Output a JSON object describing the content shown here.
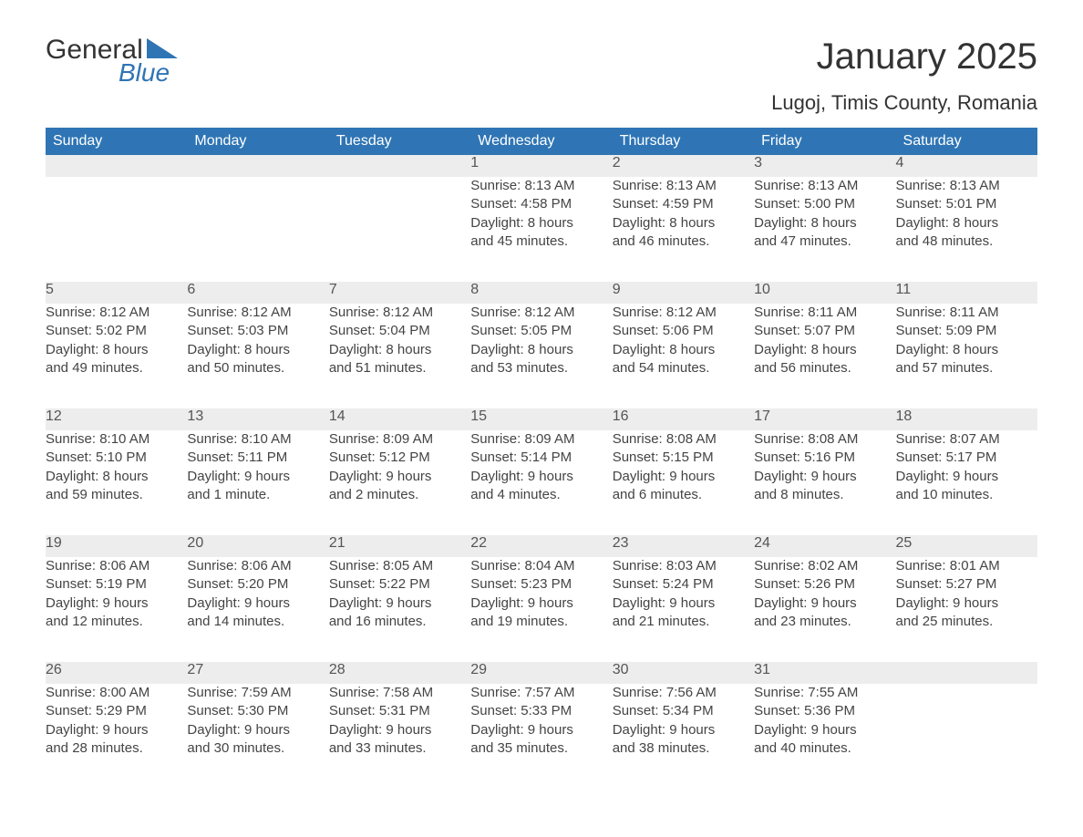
{
  "logo": {
    "word1": "General",
    "word2": "Blue",
    "brand_color": "#2f75b5"
  },
  "header": {
    "title": "January 2025",
    "location": "Lugoj, Timis County, Romania"
  },
  "dayHeaders": [
    "Sunday",
    "Monday",
    "Tuesday",
    "Wednesday",
    "Thursday",
    "Friday",
    "Saturday"
  ],
  "colors": {
    "header_bg": "#2f75b5",
    "header_text": "#ffffff",
    "daynum_bg": "#ededed",
    "daynum_text": "#555555",
    "body_text": "#444444",
    "week_sep": "#2f75b5",
    "page_bg": "#ffffff"
  },
  "weeks": [
    [
      {
        "empty": true
      },
      {
        "empty": true
      },
      {
        "empty": true
      },
      {
        "day": "1",
        "sunrise": "Sunrise: 8:13 AM",
        "sunset": "Sunset: 4:58 PM",
        "d1": "Daylight: 8 hours",
        "d2": "and 45 minutes."
      },
      {
        "day": "2",
        "sunrise": "Sunrise: 8:13 AM",
        "sunset": "Sunset: 4:59 PM",
        "d1": "Daylight: 8 hours",
        "d2": "and 46 minutes."
      },
      {
        "day": "3",
        "sunrise": "Sunrise: 8:13 AM",
        "sunset": "Sunset: 5:00 PM",
        "d1": "Daylight: 8 hours",
        "d2": "and 47 minutes."
      },
      {
        "day": "4",
        "sunrise": "Sunrise: 8:13 AM",
        "sunset": "Sunset: 5:01 PM",
        "d1": "Daylight: 8 hours",
        "d2": "and 48 minutes."
      }
    ],
    [
      {
        "day": "5",
        "sunrise": "Sunrise: 8:12 AM",
        "sunset": "Sunset: 5:02 PM",
        "d1": "Daylight: 8 hours",
        "d2": "and 49 minutes."
      },
      {
        "day": "6",
        "sunrise": "Sunrise: 8:12 AM",
        "sunset": "Sunset: 5:03 PM",
        "d1": "Daylight: 8 hours",
        "d2": "and 50 minutes."
      },
      {
        "day": "7",
        "sunrise": "Sunrise: 8:12 AM",
        "sunset": "Sunset: 5:04 PM",
        "d1": "Daylight: 8 hours",
        "d2": "and 51 minutes."
      },
      {
        "day": "8",
        "sunrise": "Sunrise: 8:12 AM",
        "sunset": "Sunset: 5:05 PM",
        "d1": "Daylight: 8 hours",
        "d2": "and 53 minutes."
      },
      {
        "day": "9",
        "sunrise": "Sunrise: 8:12 AM",
        "sunset": "Sunset: 5:06 PM",
        "d1": "Daylight: 8 hours",
        "d2": "and 54 minutes."
      },
      {
        "day": "10",
        "sunrise": "Sunrise: 8:11 AM",
        "sunset": "Sunset: 5:07 PM",
        "d1": "Daylight: 8 hours",
        "d2": "and 56 minutes."
      },
      {
        "day": "11",
        "sunrise": "Sunrise: 8:11 AM",
        "sunset": "Sunset: 5:09 PM",
        "d1": "Daylight: 8 hours",
        "d2": "and 57 minutes."
      }
    ],
    [
      {
        "day": "12",
        "sunrise": "Sunrise: 8:10 AM",
        "sunset": "Sunset: 5:10 PM",
        "d1": "Daylight: 8 hours",
        "d2": "and 59 minutes."
      },
      {
        "day": "13",
        "sunrise": "Sunrise: 8:10 AM",
        "sunset": "Sunset: 5:11 PM",
        "d1": "Daylight: 9 hours",
        "d2": "and 1 minute."
      },
      {
        "day": "14",
        "sunrise": "Sunrise: 8:09 AM",
        "sunset": "Sunset: 5:12 PM",
        "d1": "Daylight: 9 hours",
        "d2": "and 2 minutes."
      },
      {
        "day": "15",
        "sunrise": "Sunrise: 8:09 AM",
        "sunset": "Sunset: 5:14 PM",
        "d1": "Daylight: 9 hours",
        "d2": "and 4 minutes."
      },
      {
        "day": "16",
        "sunrise": "Sunrise: 8:08 AM",
        "sunset": "Sunset: 5:15 PM",
        "d1": "Daylight: 9 hours",
        "d2": "and 6 minutes."
      },
      {
        "day": "17",
        "sunrise": "Sunrise: 8:08 AM",
        "sunset": "Sunset: 5:16 PM",
        "d1": "Daylight: 9 hours",
        "d2": "and 8 minutes."
      },
      {
        "day": "18",
        "sunrise": "Sunrise: 8:07 AM",
        "sunset": "Sunset: 5:17 PM",
        "d1": "Daylight: 9 hours",
        "d2": "and 10 minutes."
      }
    ],
    [
      {
        "day": "19",
        "sunrise": "Sunrise: 8:06 AM",
        "sunset": "Sunset: 5:19 PM",
        "d1": "Daylight: 9 hours",
        "d2": "and 12 minutes."
      },
      {
        "day": "20",
        "sunrise": "Sunrise: 8:06 AM",
        "sunset": "Sunset: 5:20 PM",
        "d1": "Daylight: 9 hours",
        "d2": "and 14 minutes."
      },
      {
        "day": "21",
        "sunrise": "Sunrise: 8:05 AM",
        "sunset": "Sunset: 5:22 PM",
        "d1": "Daylight: 9 hours",
        "d2": "and 16 minutes."
      },
      {
        "day": "22",
        "sunrise": "Sunrise: 8:04 AM",
        "sunset": "Sunset: 5:23 PM",
        "d1": "Daylight: 9 hours",
        "d2": "and 19 minutes."
      },
      {
        "day": "23",
        "sunrise": "Sunrise: 8:03 AM",
        "sunset": "Sunset: 5:24 PM",
        "d1": "Daylight: 9 hours",
        "d2": "and 21 minutes."
      },
      {
        "day": "24",
        "sunrise": "Sunrise: 8:02 AM",
        "sunset": "Sunset: 5:26 PM",
        "d1": "Daylight: 9 hours",
        "d2": "and 23 minutes."
      },
      {
        "day": "25",
        "sunrise": "Sunrise: 8:01 AM",
        "sunset": "Sunset: 5:27 PM",
        "d1": "Daylight: 9 hours",
        "d2": "and 25 minutes."
      }
    ],
    [
      {
        "day": "26",
        "sunrise": "Sunrise: 8:00 AM",
        "sunset": "Sunset: 5:29 PM",
        "d1": "Daylight: 9 hours",
        "d2": "and 28 minutes."
      },
      {
        "day": "27",
        "sunrise": "Sunrise: 7:59 AM",
        "sunset": "Sunset: 5:30 PM",
        "d1": "Daylight: 9 hours",
        "d2": "and 30 minutes."
      },
      {
        "day": "28",
        "sunrise": "Sunrise: 7:58 AM",
        "sunset": "Sunset: 5:31 PM",
        "d1": "Daylight: 9 hours",
        "d2": "and 33 minutes."
      },
      {
        "day": "29",
        "sunrise": "Sunrise: 7:57 AM",
        "sunset": "Sunset: 5:33 PM",
        "d1": "Daylight: 9 hours",
        "d2": "and 35 minutes."
      },
      {
        "day": "30",
        "sunrise": "Sunrise: 7:56 AM",
        "sunset": "Sunset: 5:34 PM",
        "d1": "Daylight: 9 hours",
        "d2": "and 38 minutes."
      },
      {
        "day": "31",
        "sunrise": "Sunrise: 7:55 AM",
        "sunset": "Sunset: 5:36 PM",
        "d1": "Daylight: 9 hours",
        "d2": "and 40 minutes."
      },
      {
        "empty": true
      }
    ]
  ]
}
